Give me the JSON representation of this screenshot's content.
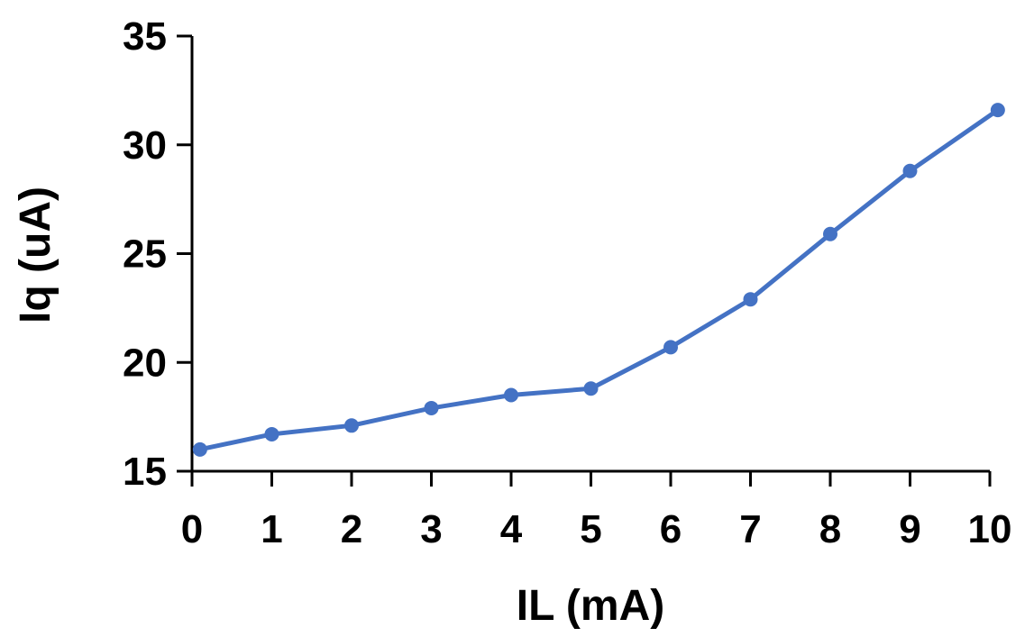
{
  "chart_data": {
    "type": "line",
    "title": "",
    "xlabel": "IL (mA)",
    "ylabel": "Iq (uA)",
    "xlim": [
      0,
      10
    ],
    "ylim": [
      15,
      35
    ],
    "x_ticks": [
      0,
      1,
      2,
      3,
      4,
      5,
      6,
      7,
      8,
      9,
      10
    ],
    "y_ticks": [
      15,
      20,
      25,
      30,
      35
    ],
    "grid": false,
    "legend": "none",
    "series": [
      {
        "color": "#4472C4",
        "marker": "circle",
        "x": [
          0.1,
          1,
          2,
          3,
          4,
          5,
          6,
          7,
          8,
          9,
          10.1
        ],
        "y": [
          16.0,
          16.7,
          17.1,
          17.9,
          18.5,
          18.8,
          20.7,
          22.9,
          25.9,
          28.8,
          31.6
        ]
      }
    ]
  }
}
